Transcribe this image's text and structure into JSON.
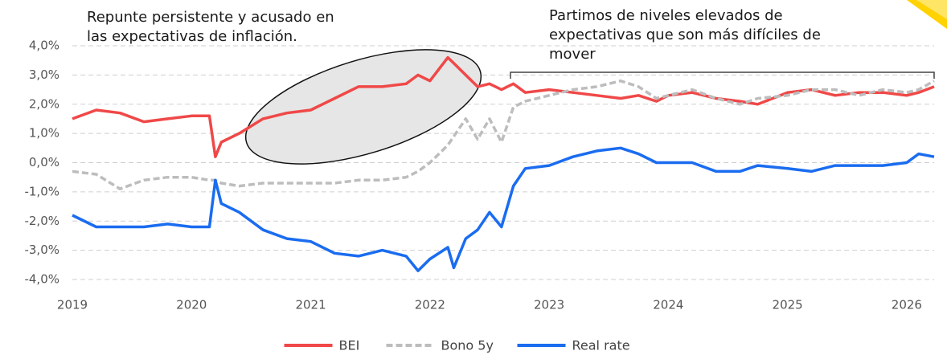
{
  "chart_data": {
    "type": "line",
    "annotations": [
      [
        "Repunte persistente y acusado en",
        "las expectativas de inflación."
      ],
      [
        "Partimos de niveles elevados de",
        "expectativas que son más difíciles de",
        "mover"
      ]
    ],
    "x": [
      2019.0,
      2019.2,
      2019.4,
      2019.6,
      2019.8,
      2020.0,
      2020.15,
      2020.2,
      2020.25,
      2020.4,
      2020.6,
      2020.8,
      2021.0,
      2021.2,
      2021.4,
      2021.6,
      2021.8,
      2021.9,
      2022.0,
      2022.15,
      2022.2,
      2022.3,
      2022.4,
      2022.5,
      2022.6,
      2022.7,
      2022.8,
      2023.0,
      2023.2,
      2023.4,
      2023.6,
      2023.75,
      2023.9,
      2024.0,
      2024.2,
      2024.4,
      2024.6,
      2024.75,
      2025.0,
      2025.2,
      2025.4,
      2025.6,
      2025.8,
      2026.0,
      2026.1,
      2026.23
    ],
    "series": [
      {
        "name": "BEI",
        "color": "#f04848",
        "dash": false,
        "values": [
          1.5,
          1.8,
          1.7,
          1.4,
          1.5,
          1.6,
          1.6,
          0.2,
          0.7,
          1.0,
          1.5,
          1.7,
          1.8,
          2.2,
          2.6,
          2.6,
          2.7,
          3.0,
          2.8,
          3.6,
          3.4,
          3.0,
          2.6,
          2.7,
          2.5,
          2.7,
          2.4,
          2.5,
          2.4,
          2.3,
          2.2,
          2.3,
          2.1,
          2.3,
          2.4,
          2.2,
          2.1,
          2.0,
          2.4,
          2.5,
          2.3,
          2.4,
          2.4,
          2.3,
          2.4,
          2.6
        ]
      },
      {
        "name": "Bono 5y",
        "color": "#bdbdbd",
        "dash": true,
        "values": [
          -0.3,
          -0.4,
          -0.9,
          -0.6,
          -0.5,
          -0.5,
          -0.6,
          -0.6,
          -0.7,
          -0.8,
          -0.7,
          -0.7,
          -0.7,
          -0.7,
          -0.6,
          -0.6,
          -0.5,
          -0.3,
          0.0,
          0.6,
          0.9,
          1.5,
          0.8,
          1.5,
          0.7,
          1.9,
          2.1,
          2.3,
          2.5,
          2.6,
          2.8,
          2.6,
          2.2,
          2.3,
          2.5,
          2.2,
          2.0,
          2.2,
          2.3,
          2.5,
          2.5,
          2.3,
          2.5,
          2.4,
          2.5,
          2.8
        ]
      },
      {
        "name": "Real rate",
        "color": "#1a6cf0",
        "dash": false,
        "values": [
          -1.8,
          -2.2,
          -2.2,
          -2.2,
          -2.1,
          -2.2,
          -2.2,
          -0.6,
          -1.4,
          -1.7,
          -2.3,
          -2.6,
          -2.7,
          -3.1,
          -3.2,
          -3.0,
          -3.2,
          -3.7,
          -3.3,
          -2.9,
          -3.6,
          -2.6,
          -2.3,
          -1.7,
          -2.2,
          -0.8,
          -0.2,
          -0.1,
          0.2,
          0.4,
          0.5,
          0.3,
          0.0,
          0.0,
          0.0,
          -0.3,
          -0.3,
          -0.1,
          -0.2,
          -0.3,
          -0.1,
          -0.1,
          -0.1,
          0.0,
          0.3,
          0.2
        ]
      }
    ],
    "xlim": [
      2019,
      2026.23
    ],
    "xticks": [
      2019,
      2020,
      2021,
      2022,
      2023,
      2024,
      2025,
      2026
    ],
    "ylim": [
      -4,
      4
    ],
    "yticks": [
      {
        "value": 4,
        "label": "4,0%"
      },
      {
        "value": 3,
        "label": "3,0%"
      },
      {
        "value": 2,
        "label": "2,0%"
      },
      {
        "value": 1,
        "label": "1,0%"
      },
      {
        "value": 0,
        "label": "0,0%"
      },
      {
        "value": -1,
        "label": "-1,0%"
      },
      {
        "value": -2,
        "label": "-2,0%"
      },
      {
        "value": -3,
        "label": "-3,0%"
      },
      {
        "value": -4,
        "label": "-4,0%"
      }
    ],
    "grid": true,
    "legend": "bottom"
  }
}
